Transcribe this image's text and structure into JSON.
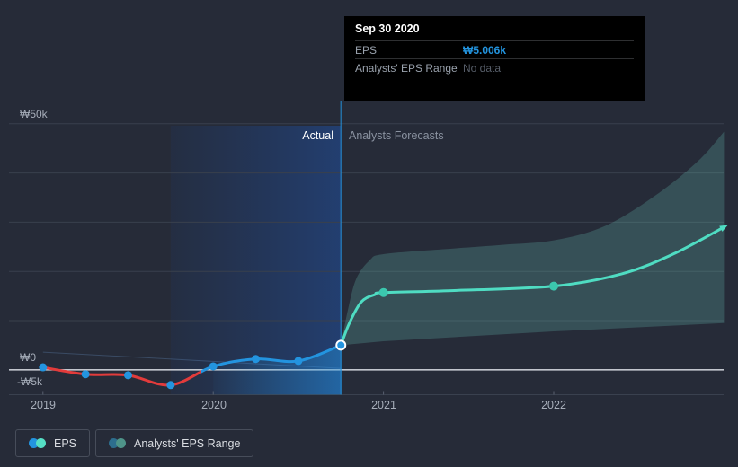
{
  "header_labels": {
    "actual": "Actual",
    "forecast": "Analysts Forecasts"
  },
  "tooltip": {
    "title": "Sep 30 2020",
    "rows": [
      {
        "label": "EPS",
        "value": "₩5.006k"
      },
      {
        "label": "Analysts' EPS Range",
        "value": "No data"
      }
    ]
  },
  "y_labels": [
    "₩50k",
    "₩0",
    "-₩5k"
  ],
  "x_ticks": [
    "2019",
    "2020",
    "2021",
    "2022"
  ],
  "legend": {
    "items": [
      {
        "label": "EPS",
        "dot_left": "#2394DF",
        "dot_right": "#55DFC5"
      },
      {
        "label": "Analysts' EPS Range",
        "dot_left": "#2D6E8E",
        "dot_right": "#4E9489"
      }
    ]
  },
  "chart_data": {
    "type": "line",
    "title": "EPS — Actual vs Analysts Forecasts",
    "currency": "KRW",
    "unit": "thousand ₩ per share",
    "x_tick_years": [
      2019,
      2020,
      2021,
      2022
    ],
    "y_gridlines_k": [
      50,
      40,
      30,
      20,
      10
    ],
    "y_axis_labeled_k": [
      50,
      0,
      -5
    ],
    "ylim_k": [
      -5.2,
      50
    ],
    "divider_t": 2020.75,
    "divider_date": "Sep 30 2020",
    "highlight_span_t": [
      2019.75,
      2020.75
    ],
    "actual_eps_k": {
      "points": [
        [
          2019.0,
          0.5
        ],
        [
          2019.25,
          -0.9
        ],
        [
          2019.5,
          -1.1
        ],
        [
          2019.75,
          -3.1
        ],
        [
          2020.0,
          0.7
        ],
        [
          2020.25,
          2.2
        ],
        [
          2020.5,
          1.8
        ],
        [
          2020.75,
          5.006
        ]
      ],
      "zero_cross_t": 2019.93,
      "last_point_value": "₩5.006k"
    },
    "forecast_eps_k": {
      "path": [
        [
          2020.75,
          5.006
        ],
        [
          2020.8,
          9.5
        ],
        [
          2020.87,
          13.8
        ],
        [
          2020.95,
          15.3
        ],
        [
          2021.0,
          15.7
        ],
        [
          2021.4,
          16.1
        ],
        [
          2022.0,
          17.0
        ],
        [
          2022.4,
          19.5
        ],
        [
          2022.7,
          23.5
        ],
        [
          2023.0,
          29.0
        ]
      ],
      "marker_points": [
        [
          2021.0,
          15.7
        ],
        [
          2022.0,
          17.0
        ]
      ]
    },
    "analyst_range_band_k": {
      "top": [
        [
          2020.75,
          5.006
        ],
        [
          2020.79,
          12.0
        ],
        [
          2020.84,
          18.5
        ],
        [
          2020.92,
          22.3
        ],
        [
          2021.0,
          23.5
        ],
        [
          2021.35,
          24.5
        ],
        [
          2021.7,
          25.4
        ],
        [
          2022.0,
          26.3
        ],
        [
          2022.3,
          29.2
        ],
        [
          2022.6,
          35.5
        ],
        [
          2022.85,
          42.5
        ],
        [
          2023.0,
          48.4
        ]
      ],
      "bottom": [
        [
          2020.75,
          5.006
        ],
        [
          2021.0,
          5.8
        ],
        [
          2022.0,
          7.8
        ],
        [
          2023.0,
          9.5
        ]
      ]
    },
    "under_area_span_t": [
      2020.0,
      2020.75
    ],
    "guide_line_k": [
      [
        2019.0,
        3.6
      ],
      [
        2020.75,
        0.3
      ]
    ],
    "colors": {
      "background": "#262B38",
      "gridline": "#39404D",
      "zero_line": "#C2C6CE",
      "axis_line": "#3A414F",
      "tick": "#596070",
      "actual_positive": "#2394DF",
      "actual_negative": "#E23B3B",
      "forecast": "#4FDCC2",
      "forecast_marker": "#3BC7AE",
      "band_fill": "rgba(99,190,179,0.26)",
      "highlight_from": "rgba(25,74,158,0.10)",
      "highlight_to": "rgba(30,90,190,0.42)",
      "under_area_from": "rgba(35,148,223,0.04)",
      "under_area_to": "rgba(35,148,223,0.45)",
      "divider": "rgba(35,148,223,0.65)",
      "guide": "rgba(120,170,230,0.25)",
      "tooltip_accent": "#2394DF"
    }
  }
}
